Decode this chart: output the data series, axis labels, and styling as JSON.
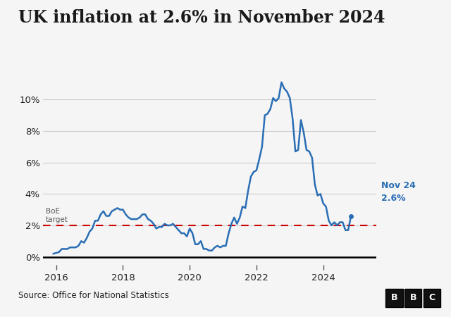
{
  "title": "UK inflation at 2.6% in November 2024",
  "title_fontsize": 17,
  "source_text": "Source: Office for National Statistics",
  "boe_label": "BoE\ntarget",
  "boe_target": 2.0,
  "annotation_label1": "Nov 24",
  "annotation_label2": "2.6%",
  "line_color": "#2a6eb5",
  "dashed_color": "#cc0000",
  "background_color": "#f5f5f5",
  "grid_color": "#cccccc",
  "ylim": [
    -0.5,
    12.2
  ],
  "yticks": [
    0,
    2,
    4,
    6,
    8,
    10
  ],
  "xlim_start": 2015.6,
  "xlim_end": 2025.6,
  "xticks": [
    2016,
    2018,
    2020,
    2022,
    2024
  ],
  "data": {
    "dates": [
      2015.917,
      2016.083,
      2016.167,
      2016.25,
      2016.333,
      2016.417,
      2016.5,
      2016.583,
      2016.667,
      2016.75,
      2016.833,
      2016.917,
      2017.0,
      2017.083,
      2017.167,
      2017.25,
      2017.333,
      2017.417,
      2017.5,
      2017.583,
      2017.667,
      2017.75,
      2017.833,
      2017.917,
      2018.0,
      2018.083,
      2018.167,
      2018.25,
      2018.333,
      2018.417,
      2018.5,
      2018.583,
      2018.667,
      2018.75,
      2018.833,
      2018.917,
      2019.0,
      2019.083,
      2019.167,
      2019.25,
      2019.333,
      2019.417,
      2019.5,
      2019.583,
      2019.667,
      2019.75,
      2019.833,
      2019.917,
      2020.0,
      2020.083,
      2020.167,
      2020.25,
      2020.333,
      2020.417,
      2020.5,
      2020.583,
      2020.667,
      2020.75,
      2020.833,
      2020.917,
      2021.0,
      2021.083,
      2021.167,
      2021.25,
      2021.333,
      2021.417,
      2021.5,
      2021.583,
      2021.667,
      2021.75,
      2021.833,
      2021.917,
      2022.0,
      2022.083,
      2022.167,
      2022.25,
      2022.333,
      2022.417,
      2022.5,
      2022.583,
      2022.667,
      2022.75,
      2022.833,
      2022.917,
      2023.0,
      2023.083,
      2023.167,
      2023.25,
      2023.333,
      2023.417,
      2023.5,
      2023.583,
      2023.667,
      2023.75,
      2023.833,
      2023.917,
      2024.0,
      2024.083,
      2024.167,
      2024.25,
      2024.333,
      2024.417,
      2024.5,
      2024.583,
      2024.667,
      2024.75,
      2024.833
    ],
    "values": [
      0.2,
      0.3,
      0.5,
      0.5,
      0.5,
      0.6,
      0.6,
      0.6,
      0.7,
      1.0,
      0.9,
      1.2,
      1.6,
      1.8,
      2.3,
      2.3,
      2.7,
      2.9,
      2.6,
      2.6,
      2.9,
      3.0,
      3.1,
      3.0,
      3.0,
      2.7,
      2.5,
      2.4,
      2.4,
      2.4,
      2.5,
      2.7,
      2.7,
      2.4,
      2.3,
      2.1,
      1.8,
      1.9,
      1.9,
      2.1,
      2.0,
      2.0,
      2.1,
      1.9,
      1.7,
      1.5,
      1.5,
      1.3,
      1.8,
      1.5,
      0.8,
      0.8,
      1.0,
      0.5,
      0.5,
      0.4,
      0.4,
      0.6,
      0.7,
      0.6,
      0.7,
      0.7,
      1.5,
      2.1,
      2.5,
      2.1,
      2.5,
      3.2,
      3.1,
      4.2,
      5.1,
      5.4,
      5.5,
      6.2,
      7.0,
      9.0,
      9.1,
      9.4,
      10.1,
      9.9,
      10.1,
      11.1,
      10.7,
      10.5,
      10.1,
      8.8,
      6.7,
      6.8,
      8.7,
      7.9,
      6.8,
      6.7,
      6.3,
      4.6,
      3.9,
      4.0,
      3.4,
      3.2,
      2.3,
      2.0,
      2.2,
      2.0,
      2.2,
      2.2,
      1.7,
      1.7,
      2.6
    ]
  },
  "last_date": 2024.833,
  "last_value": 2.6,
  "dot_color": "#2a6eb5",
  "dot_size": 5,
  "bbc_box_color": "#111111",
  "bbc_text_color": "#ffffff",
  "footer_line_color": "#333333"
}
